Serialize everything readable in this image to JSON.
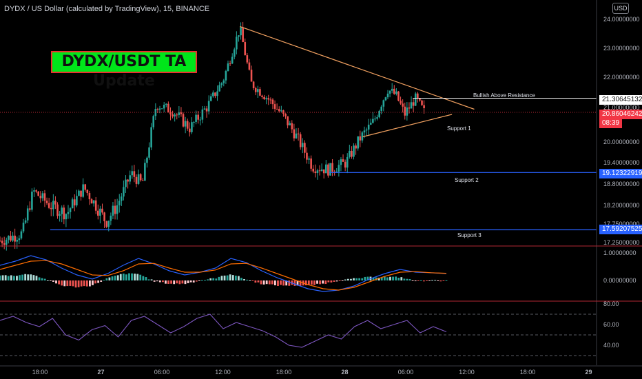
{
  "header": {
    "title": "DYDX / US Dollar (calculated by TradingView), 15, BINANCE"
  },
  "annotation": {
    "title": "DYDX/USDT TA Update"
  },
  "currency_label": "USD",
  "price_tags": {
    "resistance": "21.30645132",
    "current_price": "20.86046242",
    "countdown": "08:39",
    "support2": "19.12322919",
    "support3": "17.59207525"
  },
  "level_labels": {
    "resistance": "Bullish Above Resistance",
    "support1": "Support 1",
    "support2": "Support 2",
    "support3": "Support 3"
  },
  "colors": {
    "up": "#26a69a",
    "down": "#ef5350",
    "trendline": "#f0a060",
    "support_line": "#2962ff",
    "resistance_line": "#ffffff",
    "macd_line": "#2962ff",
    "signal_line": "#ff6d00",
    "rsi_line": "#7e57c2",
    "panel_border": "#b22833"
  },
  "chart_data": [
    {
      "type": "candlestick",
      "title": "DYDX / US Dollar, 15, BINANCE",
      "y_axis_ticks": [
        "24.00000000",
        "23.00000000",
        "22.00000000",
        "21.00000000",
        "20.00000000",
        "19.40000000",
        "18.80000000",
        "18.20000000",
        "17.75000000",
        "17.25000000"
      ],
      "x_axis_ticks": [
        "18:00",
        "27",
        "06:00",
        "12:00",
        "18:00",
        "28",
        "06:00",
        "12:00",
        "18:00",
        "29"
      ],
      "price_path": [
        {
          "t": 0,
          "p": 17.3
        },
        {
          "t": 0.04,
          "p": 17.5
        },
        {
          "t": 0.06,
          "p": 18.6
        },
        {
          "t": 0.09,
          "p": 18.2
        },
        {
          "t": 0.12,
          "p": 18.0
        },
        {
          "t": 0.15,
          "p": 18.7
        },
        {
          "t": 0.19,
          "p": 17.8
        },
        {
          "t": 0.21,
          "p": 18.2
        },
        {
          "t": 0.235,
          "p": 19.1
        },
        {
          "t": 0.255,
          "p": 18.8
        },
        {
          "t": 0.28,
          "p": 21.1
        },
        {
          "t": 0.31,
          "p": 20.9
        },
        {
          "t": 0.34,
          "p": 20.4
        },
        {
          "t": 0.37,
          "p": 21.0
        },
        {
          "t": 0.4,
          "p": 21.9
        },
        {
          "t": 0.43,
          "p": 23.7
        },
        {
          "t": 0.45,
          "p": 21.8
        },
        {
          "t": 0.48,
          "p": 21.3
        },
        {
          "t": 0.51,
          "p": 20.7
        },
        {
          "t": 0.53,
          "p": 20.2
        },
        {
          "t": 0.56,
          "p": 19.3
        },
        {
          "t": 0.59,
          "p": 19.2
        },
        {
          "t": 0.62,
          "p": 19.4
        },
        {
          "t": 0.645,
          "p": 20.1
        },
        {
          "t": 0.67,
          "p": 20.6
        },
        {
          "t": 0.695,
          "p": 21.6
        },
        {
          "t": 0.71,
          "p": 21.4
        },
        {
          "t": 0.725,
          "p": 20.8
        },
        {
          "t": 0.745,
          "p": 21.3
        },
        {
          "t": 0.76,
          "p": 20.86
        }
      ],
      "trendlines": [
        {
          "name": "resistance",
          "from": {
            "t": 0.43,
            "p": 23.75
          },
          "to": {
            "t": 0.85,
            "p": 20.95
          }
        },
        {
          "name": "support 1",
          "from": {
            "t": 0.65,
            "p": 20.15
          },
          "to": {
            "t": 0.81,
            "p": 20.8
          }
        }
      ],
      "horizontal_levels": [
        {
          "name": "Bullish Above Resistance",
          "price": 21.30645132
        },
        {
          "name": "Support 2",
          "price": 19.12322919
        },
        {
          "name": "Support 3",
          "price": 17.59207525
        }
      ],
      "current_price": 20.86046242
    },
    {
      "type": "macd",
      "y_axis_ticks": [
        "1.00000000",
        "0.00000000"
      ],
      "macd": [
        0.55,
        0.7,
        0.9,
        0.75,
        0.45,
        0.2,
        0.05,
        0.25,
        0.55,
        0.8,
        0.6,
        0.35,
        0.2,
        0.3,
        0.45,
        0.8,
        0.65,
        0.35,
        0.1,
        -0.1,
        -0.3,
        -0.4,
        -0.35,
        -0.2,
        0.05,
        0.25,
        0.4,
        0.3,
        0.28,
        0.25
      ],
      "signal": [
        0.4,
        0.55,
        0.7,
        0.72,
        0.6,
        0.4,
        0.2,
        0.18,
        0.35,
        0.6,
        0.62,
        0.45,
        0.3,
        0.3,
        0.38,
        0.6,
        0.62,
        0.45,
        0.25,
        0.05,
        -0.15,
        -0.3,
        -0.35,
        -0.25,
        -0.05,
        0.15,
        0.3,
        0.32,
        0.28,
        0.26
      ]
    },
    {
      "type": "rsi",
      "y_axis_ticks": [
        "80.00",
        "60.00",
        "40.00"
      ],
      "bands": [
        70,
        50,
        30
      ],
      "values": [
        64,
        68,
        62,
        58,
        66,
        50,
        45,
        55,
        59,
        48,
        64,
        68,
        60,
        52,
        58,
        66,
        70,
        56,
        62,
        58,
        54,
        48,
        40,
        38,
        44,
        50,
        46,
        58,
        64,
        56,
        60,
        64,
        52,
        58,
        53
      ]
    }
  ]
}
